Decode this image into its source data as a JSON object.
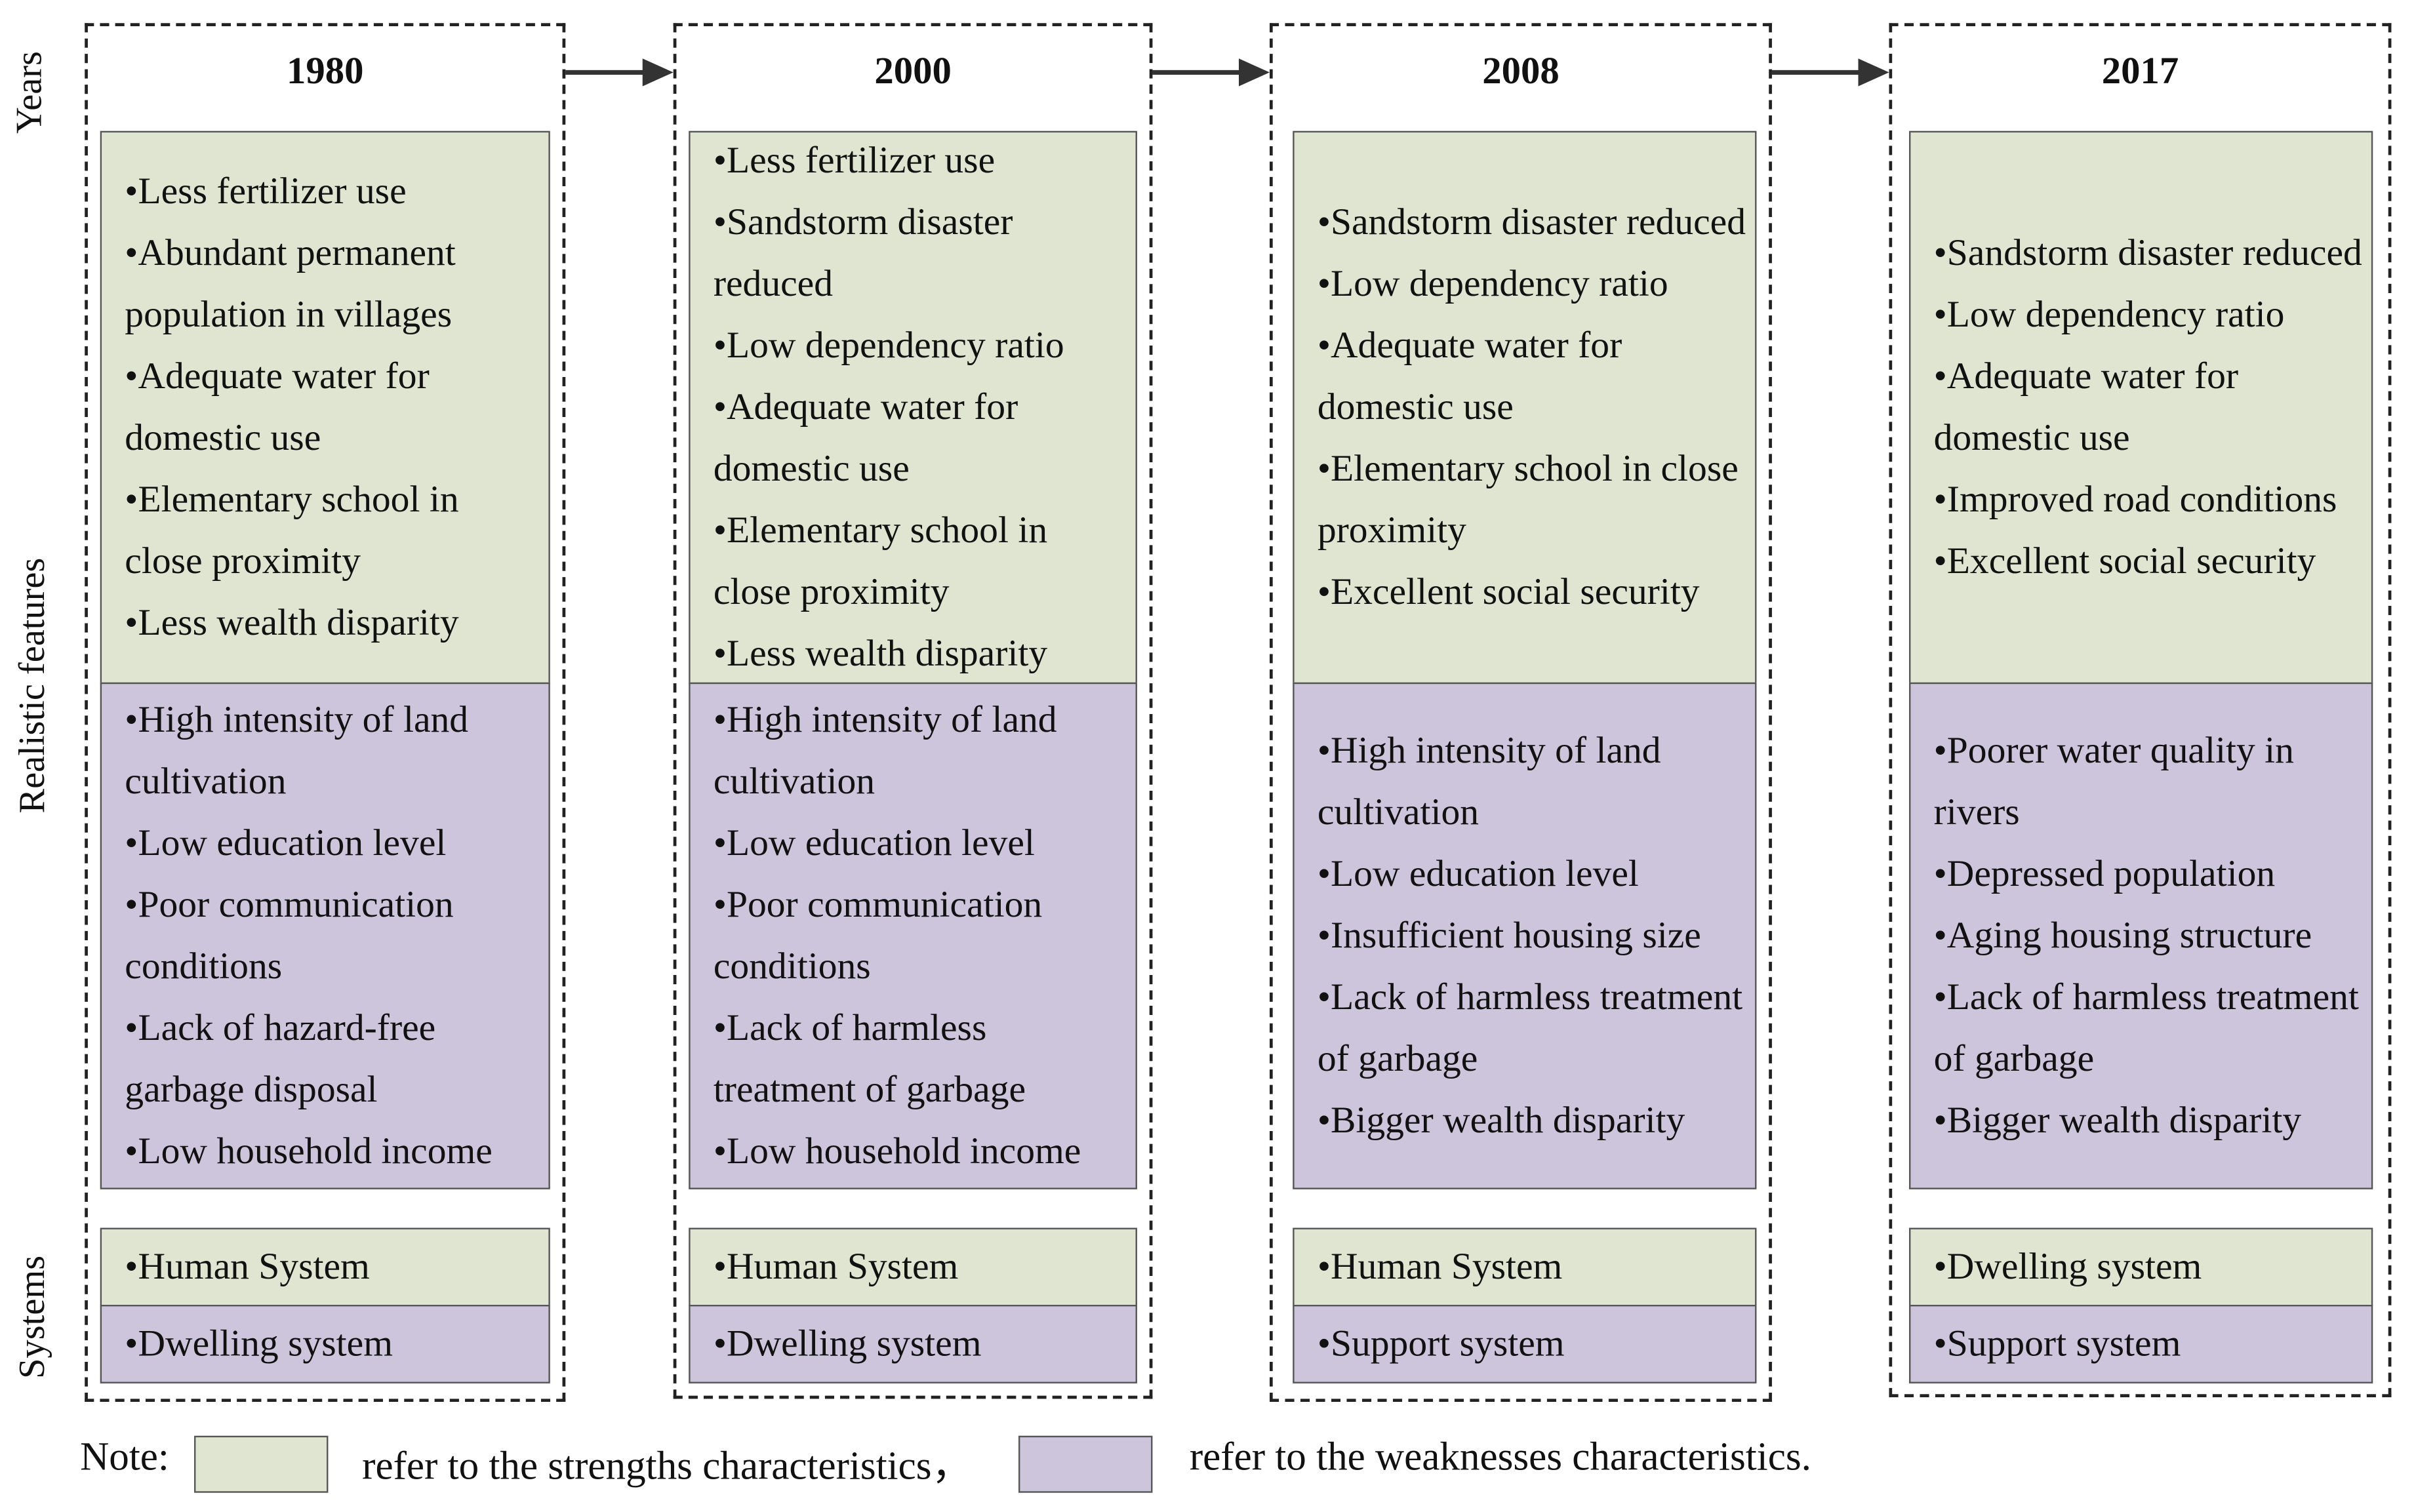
{
  "axis_labels": {
    "years": "Years",
    "features": "Realistic features",
    "systems": "Systems"
  },
  "columns": [
    {
      "year": "1980",
      "strengths": [
        "•Less fertilizer use",
        "•Abundant permanent population in villages",
        "•Adequate water for domestic use",
        "•Elementary school in close proximity",
        "•Less wealth disparity"
      ],
      "weaknesses": [
        "•High intensity of land cultivation",
        "•Low education level",
        "•Poor communication conditions",
        "•Lack of hazard-free garbage disposal",
        "•Low household income"
      ],
      "systems": {
        "strength": "•Human System",
        "weakness": "•Dwelling system"
      }
    },
    {
      "year": "2000",
      "strengths": [
        "•Less fertilizer use",
        "•Sandstorm disaster reduced",
        "•Low dependency ratio",
        "•Adequate water for domestic use",
        "•Elementary school in close proximity",
        "•Less wealth disparity"
      ],
      "weaknesses": [
        "•High intensity of land cultivation",
        "•Low education level",
        "•Poor communication conditions",
        "•Lack of harmless treatment of garbage",
        "•Low household income"
      ],
      "systems": {
        "strength": "•Human System",
        "weakness": "•Dwelling system"
      }
    },
    {
      "year": "2008",
      "strengths": [
        "•Sandstorm disaster reduced",
        "•Low dependency ratio",
        "•Adequate water for domestic use",
        "•Elementary school in close proximity",
        "•Excellent social security"
      ],
      "weaknesses": [
        "•High intensity of land cultivation",
        "•Low education level",
        "•Insufficient housing size",
        "•Lack of harmless treatment of garbage",
        "•Bigger wealth disparity"
      ],
      "systems": {
        "strength": "•Human System",
        "weakness": "•Support system"
      }
    },
    {
      "year": "2017",
      "strengths": [
        "•Sandstorm disaster reduced",
        "•Low dependency ratio",
        "•Adequate water for domestic use",
        "•Improved road conditions",
        "•Excellent social security"
      ],
      "weaknesses": [
        "•Poorer water quality in rivers",
        "•Depressed population",
        "•Aging housing structure",
        "•Lack of harmless treatment of garbage",
        "•Bigger wealth disparity"
      ],
      "systems": {
        "strength": "•Dwelling system",
        "weakness": "•Support system"
      }
    }
  ],
  "note": {
    "label": "Note:",
    "strengths": "refer to the strengths characteristics，",
    "weaknesses": "refer to the weaknesses characteristics."
  }
}
